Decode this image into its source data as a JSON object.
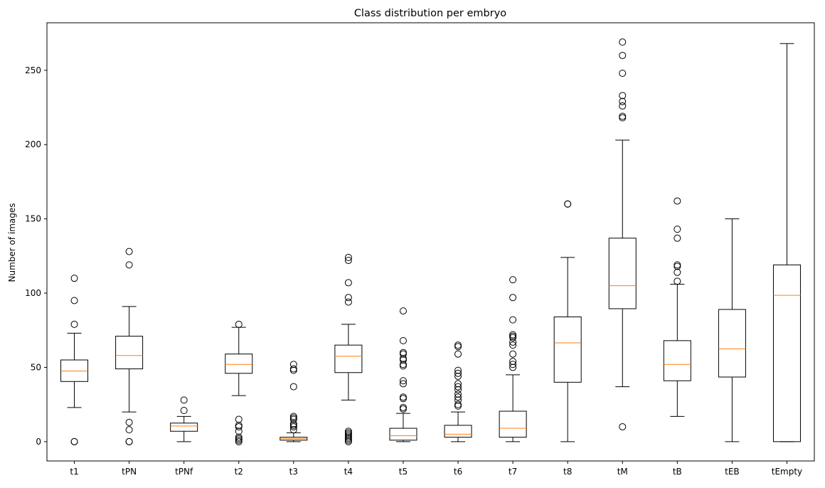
{
  "chart_data": {
    "type": "box",
    "title": "Class distribution per embryo",
    "xlabel": "",
    "ylabel": "Number of images",
    "ylim": [
      -13,
      282
    ],
    "yticks": [
      0,
      50,
      100,
      150,
      200,
      250
    ],
    "grid": false,
    "colors": {
      "box": "#000000",
      "median": "#ff7f0e",
      "background": "#ffffff"
    },
    "categories": [
      "t1",
      "tPN",
      "tPNf",
      "t2",
      "t3",
      "t4",
      "t5",
      "t6",
      "t7",
      "t8",
      "tM",
      "tB",
      "tEB",
      "tEmpty"
    ],
    "boxes": [
      {
        "label": "t1",
        "whisker_low": 23,
        "q1": 40.5,
        "median": 47.5,
        "q3": 55,
        "whisker_high": 73,
        "fliers": [
          110,
          95,
          79,
          0,
          0
        ]
      },
      {
        "label": "tPN",
        "whisker_low": 20,
        "q1": 49,
        "median": 58,
        "q3": 71,
        "whisker_high": 91,
        "fliers": [
          128,
          119,
          13,
          8,
          0,
          0
        ]
      },
      {
        "label": "tPNf",
        "whisker_low": 0,
        "q1": 7,
        "median": 10.5,
        "q3": 12.5,
        "whisker_high": 17,
        "fliers": [
          28,
          21
        ]
      },
      {
        "label": "t2",
        "whisker_low": 31,
        "q1": 46,
        "median": 52,
        "q3": 59,
        "whisker_high": 77,
        "fliers": [
          79,
          15,
          11,
          10,
          7,
          3,
          2,
          1,
          0
        ]
      },
      {
        "label": "t3",
        "whisker_low": 0,
        "q1": 1,
        "median": 2,
        "q3": 3,
        "whisker_high": 6,
        "fliers": [
          52,
          49,
          48,
          37,
          17,
          16,
          15,
          12,
          11,
          10,
          8
        ]
      },
      {
        "label": "t4",
        "whisker_low": 28,
        "q1": 46.5,
        "median": 57.5,
        "q3": 65,
        "whisker_high": 79,
        "fliers": [
          124,
          122,
          107,
          97,
          94,
          7,
          6,
          5,
          4,
          3,
          2,
          1,
          0
        ]
      },
      {
        "label": "t5",
        "whisker_low": 0,
        "q1": 1,
        "median": 4,
        "q3": 9,
        "whisker_high": 19,
        "fliers": [
          88,
          68,
          60,
          59,
          56,
          55,
          52,
          51,
          41,
          39,
          30,
          29,
          23,
          22
        ]
      },
      {
        "label": "t6",
        "whisker_low": 0,
        "q1": 3,
        "median": 5,
        "q3": 11,
        "whisker_high": 20,
        "fliers": [
          65,
          64,
          59,
          48,
          46,
          44,
          39,
          37,
          35,
          32,
          30,
          28,
          25,
          24
        ]
      },
      {
        "label": "t7",
        "whisker_low": 0,
        "q1": 3,
        "median": 9,
        "q3": 20.5,
        "whisker_high": 45,
        "fliers": [
          109,
          97,
          82,
          72,
          71,
          70,
          67,
          65,
          59,
          54,
          52,
          50
        ]
      },
      {
        "label": "t8",
        "whisker_low": 0,
        "q1": 40,
        "median": 66.5,
        "q3": 84,
        "whisker_high": 124,
        "fliers": [
          160,
          160
        ]
      },
      {
        "label": "tM",
        "whisker_low": 37,
        "q1": 89.5,
        "median": 105,
        "q3": 137,
        "whisker_high": 203,
        "fliers": [
          269,
          260,
          248,
          233,
          229,
          226,
          219,
          218,
          10
        ]
      },
      {
        "label": "tB",
        "whisker_low": 17,
        "q1": 41,
        "median": 52,
        "q3": 68,
        "whisker_high": 106,
        "fliers": [
          162,
          143,
          137,
          119,
          118,
          114,
          108
        ]
      },
      {
        "label": "tEB",
        "whisker_low": 0,
        "q1": 43.5,
        "median": 62.5,
        "q3": 89,
        "whisker_high": 150,
        "fliers": []
      },
      {
        "label": "tEmpty",
        "whisker_low": 0,
        "q1": 0,
        "median": 98.5,
        "q3": 119,
        "whisker_high": 268,
        "fliers": []
      }
    ]
  }
}
